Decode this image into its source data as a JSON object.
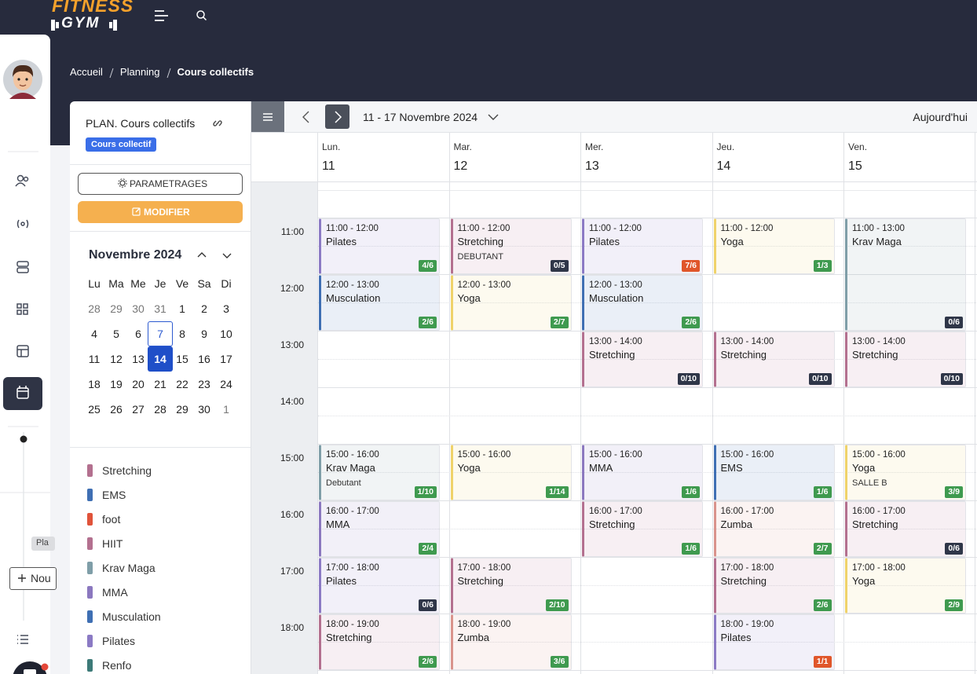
{
  "logo": {
    "line1": "FITNESS",
    "line2": "GYM"
  },
  "breadcrumb": [
    "Accueil",
    "Planning",
    "Cours collectifs"
  ],
  "sidebar": {
    "tag": "Pla",
    "button": "Nou"
  },
  "panel": {
    "title": "PLAN. Cours collectifs",
    "badge": "Cours collectif",
    "settings_button": "PARAMETRAGES",
    "edit_button": "MODIFIER"
  },
  "mini_calendar": {
    "month": "Novembre 2024",
    "weekdays": [
      "Lu",
      "Ma",
      "Me",
      "Je",
      "Ve",
      "Sa",
      "Di"
    ],
    "weeks": [
      [
        28,
        29,
        30,
        31,
        1,
        2,
        3
      ],
      [
        4,
        5,
        6,
        7,
        8,
        9,
        10
      ],
      [
        11,
        12,
        13,
        14,
        15,
        16,
        17
      ],
      [
        18,
        19,
        20,
        21,
        22,
        23,
        24
      ],
      [
        25,
        26,
        27,
        28,
        29,
        30,
        1
      ]
    ],
    "today": 7,
    "selected": 14
  },
  "legend": [
    {
      "name": "Stretching",
      "color": "#b3708f"
    },
    {
      "name": "EMS",
      "color": "#3f6fb3"
    },
    {
      "name": "foot",
      "color": "#e0533a"
    },
    {
      "name": "HIIT",
      "color": "#b3708f"
    },
    {
      "name": "Krav Maga",
      "color": "#7f9ea8"
    },
    {
      "name": "MMA",
      "color": "#8b78bf"
    },
    {
      "name": "Musculation",
      "color": "#3f6fb3"
    },
    {
      "name": "Pilates",
      "color": "#8b7ac4"
    },
    {
      "name": "Renfo",
      "color": "#3d7a78"
    }
  ],
  "toolbar": {
    "range": "11 - 17 Novembre 2024",
    "today_button": "Aujourd'hui"
  },
  "hours": [
    "11:00",
    "12:00",
    "13:00",
    "14:00",
    "15:00",
    "16:00",
    "17:00",
    "18:00"
  ],
  "days": [
    {
      "name": "Lun.",
      "date": 11,
      "events": [
        {
          "time": "11:00 - 12:00",
          "title": "Pilates",
          "count": "4/6",
          "color": "#8b7ac4",
          "badge": "#3f9a4f"
        },
        {
          "time": "12:00 - 13:00",
          "title": "Musculation",
          "count": "2/6",
          "color": "#3f6fb3",
          "badge": "#3f9a4f"
        },
        {
          "time": "15:00 - 16:00",
          "title": "Krav Maga",
          "subtitle": "Debutant",
          "count": "1/10",
          "color": "#7f9ea8",
          "badge": "#3f9a4f"
        },
        {
          "time": "16:00 - 17:00",
          "title": "MMA",
          "count": "2/4",
          "color": "#8b78bf",
          "badge": "#3f9a4f"
        },
        {
          "time": "17:00 - 18:00",
          "title": "Pilates",
          "count": "0/6",
          "color": "#8b7ac4",
          "badge": "#2f3648"
        },
        {
          "time": "18:00 - 19:00",
          "title": "Stretching",
          "count": "2/6",
          "color": "#b3708f",
          "badge": "#3f9a4f"
        }
      ]
    },
    {
      "name": "Mar.",
      "date": 12,
      "events": [
        {
          "time": "11:00 - 12:00",
          "title": "Stretching",
          "subtitle": "DEBUTANT",
          "count": "0/5",
          "color": "#b3708f",
          "badge": "#2f3648"
        },
        {
          "time": "12:00 - 13:00",
          "title": "Yoga",
          "count": "2/7",
          "color": "#efd26a",
          "badge": "#3f9a4f"
        },
        {
          "time": "15:00 - 16:00",
          "title": "Yoga",
          "count": "1/14",
          "color": "#efd26a",
          "badge": "#3f9a4f"
        },
        {
          "time": "17:00 - 18:00",
          "title": "Stretching",
          "count": "2/10",
          "color": "#b3708f",
          "badge": "#3f9a4f"
        },
        {
          "time": "18:00 - 19:00",
          "title": "Zumba",
          "count": "3/6",
          "color": "#d9938c",
          "badge": "#3f9a4f"
        }
      ]
    },
    {
      "name": "Mer.",
      "date": 13,
      "events": [
        {
          "time": "11:00 - 12:00",
          "title": "Pilates",
          "count": "7/6",
          "color": "#8b7ac4",
          "badge": "#e0562a"
        },
        {
          "time": "12:00 - 13:00",
          "title": "Musculation",
          "count": "2/6",
          "color": "#3f6fb3",
          "badge": "#3f9a4f"
        },
        {
          "time": "13:00 - 14:00",
          "title": "Stretching",
          "count": "0/10",
          "color": "#b3708f",
          "badge": "#2f3648"
        },
        {
          "time": "15:00 - 16:00",
          "title": "MMA",
          "count": "1/6",
          "color": "#8b78bf",
          "badge": "#3f9a4f"
        },
        {
          "time": "16:00 - 17:00",
          "title": "Stretching",
          "count": "1/6",
          "color": "#b3708f",
          "badge": "#3f9a4f"
        }
      ]
    },
    {
      "name": "Jeu.",
      "date": 14,
      "events": [
        {
          "time": "11:00 - 12:00",
          "title": "Yoga",
          "count": "1/3",
          "color": "#efd26a",
          "badge": "#3f9a4f"
        },
        {
          "time": "13:00 - 14:00",
          "title": "Stretching",
          "count": "0/10",
          "color": "#b3708f",
          "badge": "#2f3648"
        },
        {
          "time": "15:00 - 16:00",
          "title": "EMS",
          "count": "1/6",
          "color": "#3f6fb3",
          "badge": "#3f9a4f"
        },
        {
          "time": "16:00 - 17:00",
          "title": "Zumba",
          "count": "2/7",
          "color": "#d9938c",
          "badge": "#3f9a4f"
        },
        {
          "time": "17:00 - 18:00",
          "title": "Stretching",
          "count": "2/6",
          "color": "#b3708f",
          "badge": "#3f9a4f"
        },
        {
          "time": "18:00 - 19:00",
          "title": "Pilates",
          "count": "1/1",
          "color": "#8b7ac4",
          "badge": "#e0562a"
        }
      ]
    },
    {
      "name": "Ven.",
      "date": 15,
      "events": [
        {
          "time": "11:00 - 13:00",
          "title": "Krav Maga",
          "count": "0/6",
          "color": "#7f9ea8",
          "badge": "#2f3648"
        },
        {
          "time": "13:00 - 14:00",
          "title": "Stretching",
          "count": "0/10",
          "color": "#b3708f",
          "badge": "#2f3648"
        },
        {
          "time": "15:00 - 16:00",
          "title": "Yoga",
          "subtitle": "SALLE B",
          "count": "3/9",
          "color": "#efd26a",
          "badge": "#3f9a4f"
        },
        {
          "time": "16:00 - 17:00",
          "title": "Stretching",
          "count": "0/6",
          "color": "#b3708f",
          "badge": "#2f3648"
        },
        {
          "time": "17:00 - 18:00",
          "title": "Yoga",
          "count": "2/9",
          "color": "#efd26a",
          "badge": "#3f9a4f"
        }
      ]
    }
  ]
}
